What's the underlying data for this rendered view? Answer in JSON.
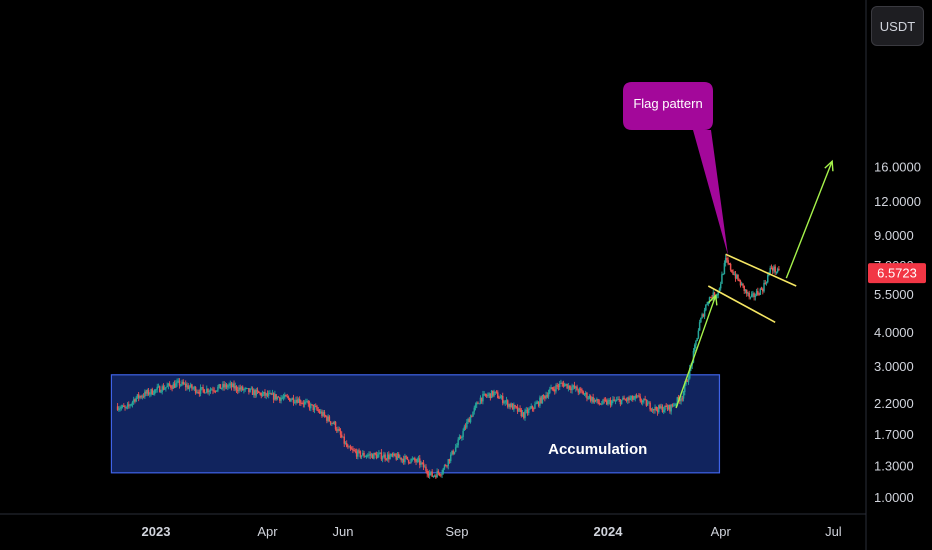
{
  "toolbar": {
    "currency_label": "USDT"
  },
  "colors": {
    "background": "#000000",
    "up_candle": "#26a69a",
    "down_candle": "#ef5350",
    "accumulation_fill": "#142a6e",
    "accumulation_border": "#3f63e8",
    "flag_lines": "#f5e663",
    "arrows": "#a6f24b",
    "callout": "#a3089a",
    "price_badge": "#f23645"
  },
  "annotations": {
    "accumulation_label": "Accumulation",
    "flag_label": "Flag pattern"
  },
  "price_badge": {
    "value": "6.5723",
    "price": 6.5723
  },
  "chart_data": {
    "type": "candlestick",
    "y_scale": "log",
    "y_ticks": [
      {
        "value": 1.0,
        "label": "1.0000"
      },
      {
        "value": 1.3,
        "label": "1.3000"
      },
      {
        "value": 1.7,
        "label": "1.7000"
      },
      {
        "value": 2.2,
        "label": "2.2000"
      },
      {
        "value": 3.0,
        "label": "3.0000"
      },
      {
        "value": 4.0,
        "label": "4.0000"
      },
      {
        "value": 5.5,
        "label": "5.5000"
      },
      {
        "value": 7.0,
        "label": "7.0000"
      },
      {
        "value": 9.0,
        "label": "9.0000"
      },
      {
        "value": 12.0,
        "label": "12.0000"
      },
      {
        "value": 16.0,
        "label": "16.0000"
      }
    ],
    "x_ticks": [
      {
        "label": "2023",
        "date": "2023-01-01",
        "bold": true
      },
      {
        "label": "Apr",
        "date": "2023-04-01",
        "bold": false
      },
      {
        "label": "Jun",
        "date": "2023-06-01",
        "bold": false
      },
      {
        "label": "Sep",
        "date": "2023-09-01",
        "bold": false
      },
      {
        "label": "2024",
        "date": "2024-01-01",
        "bold": true
      },
      {
        "label": "Apr",
        "date": "2024-04-01",
        "bold": false
      },
      {
        "label": "Jul",
        "date": "2024-07-01",
        "bold": false
      }
    ],
    "path": [
      [
        "2022-12-01",
        2.15
      ],
      [
        "2022-12-08",
        2.1
      ],
      [
        "2022-12-15",
        2.3
      ],
      [
        "2022-12-25",
        2.4
      ],
      [
        "2023-01-05",
        2.5
      ],
      [
        "2023-01-20",
        2.6
      ],
      [
        "2023-02-05",
        2.45
      ],
      [
        "2023-02-18",
        2.5
      ],
      [
        "2023-03-01",
        2.55
      ],
      [
        "2023-03-15",
        2.45
      ],
      [
        "2023-04-01",
        2.35
      ],
      [
        "2023-04-15",
        2.3
      ],
      [
        "2023-04-25",
        2.28
      ],
      [
        "2023-05-10",
        2.1
      ],
      [
        "2023-05-25",
        1.85
      ],
      [
        "2023-06-05",
        1.5
      ],
      [
        "2023-06-15",
        1.43
      ],
      [
        "2023-07-01",
        1.42
      ],
      [
        "2023-07-15",
        1.4
      ],
      [
        "2023-08-01",
        1.35
      ],
      [
        "2023-08-12",
        1.2
      ],
      [
        "2023-08-20",
        1.25
      ],
      [
        "2023-09-01",
        1.55
      ],
      [
        "2023-09-10",
        1.9
      ],
      [
        "2023-09-20",
        2.3
      ],
      [
        "2023-10-01",
        2.4
      ],
      [
        "2023-10-15",
        2.15
      ],
      [
        "2023-10-25",
        2.0
      ],
      [
        "2023-11-05",
        2.2
      ],
      [
        "2023-11-15",
        2.45
      ],
      [
        "2023-11-25",
        2.6
      ],
      [
        "2023-12-05",
        2.5
      ],
      [
        "2023-12-15",
        2.35
      ],
      [
        "2023-12-25",
        2.2
      ],
      [
        "2024-01-10",
        2.25
      ],
      [
        "2024-01-25",
        2.3
      ],
      [
        "2024-02-08",
        2.1
      ],
      [
        "2024-02-20",
        2.12
      ],
      [
        "2024-03-01",
        2.35
      ],
      [
        "2024-03-08",
        3.0
      ],
      [
        "2024-03-15",
        4.3
      ],
      [
        "2024-03-22",
        5.3
      ],
      [
        "2024-03-30",
        5.6
      ],
      [
        "2024-04-05",
        7.3
      ],
      [
        "2024-04-15",
        6.2
      ],
      [
        "2024-04-25",
        5.3
      ],
      [
        "2024-05-05",
        5.8
      ],
      [
        "2024-05-12",
        6.9
      ],
      [
        "2024-05-18",
        6.57
      ]
    ],
    "accumulation_zone": {
      "x_start": "2022-11-26",
      "x_end": "2024-03-31",
      "y_low": 1.23,
      "y_high": 2.8
    },
    "flag_upper": [
      [
        "2024-04-05",
        7.7
      ],
      [
        "2024-06-01",
        5.9
      ]
    ],
    "flag_lower": [
      [
        "2024-03-22",
        5.9
      ],
      [
        "2024-05-15",
        4.35
      ]
    ],
    "arrow_up_1": [
      [
        "2024-02-25",
        2.12
      ],
      [
        "2024-03-28",
        5.45
      ]
    ],
    "arrow_up_2": [
      [
        "2024-05-24",
        6.3
      ],
      [
        "2024-06-30",
        16.8
      ]
    ],
    "callout_pointer": [
      "2024-04-07",
      7.6
    ]
  }
}
